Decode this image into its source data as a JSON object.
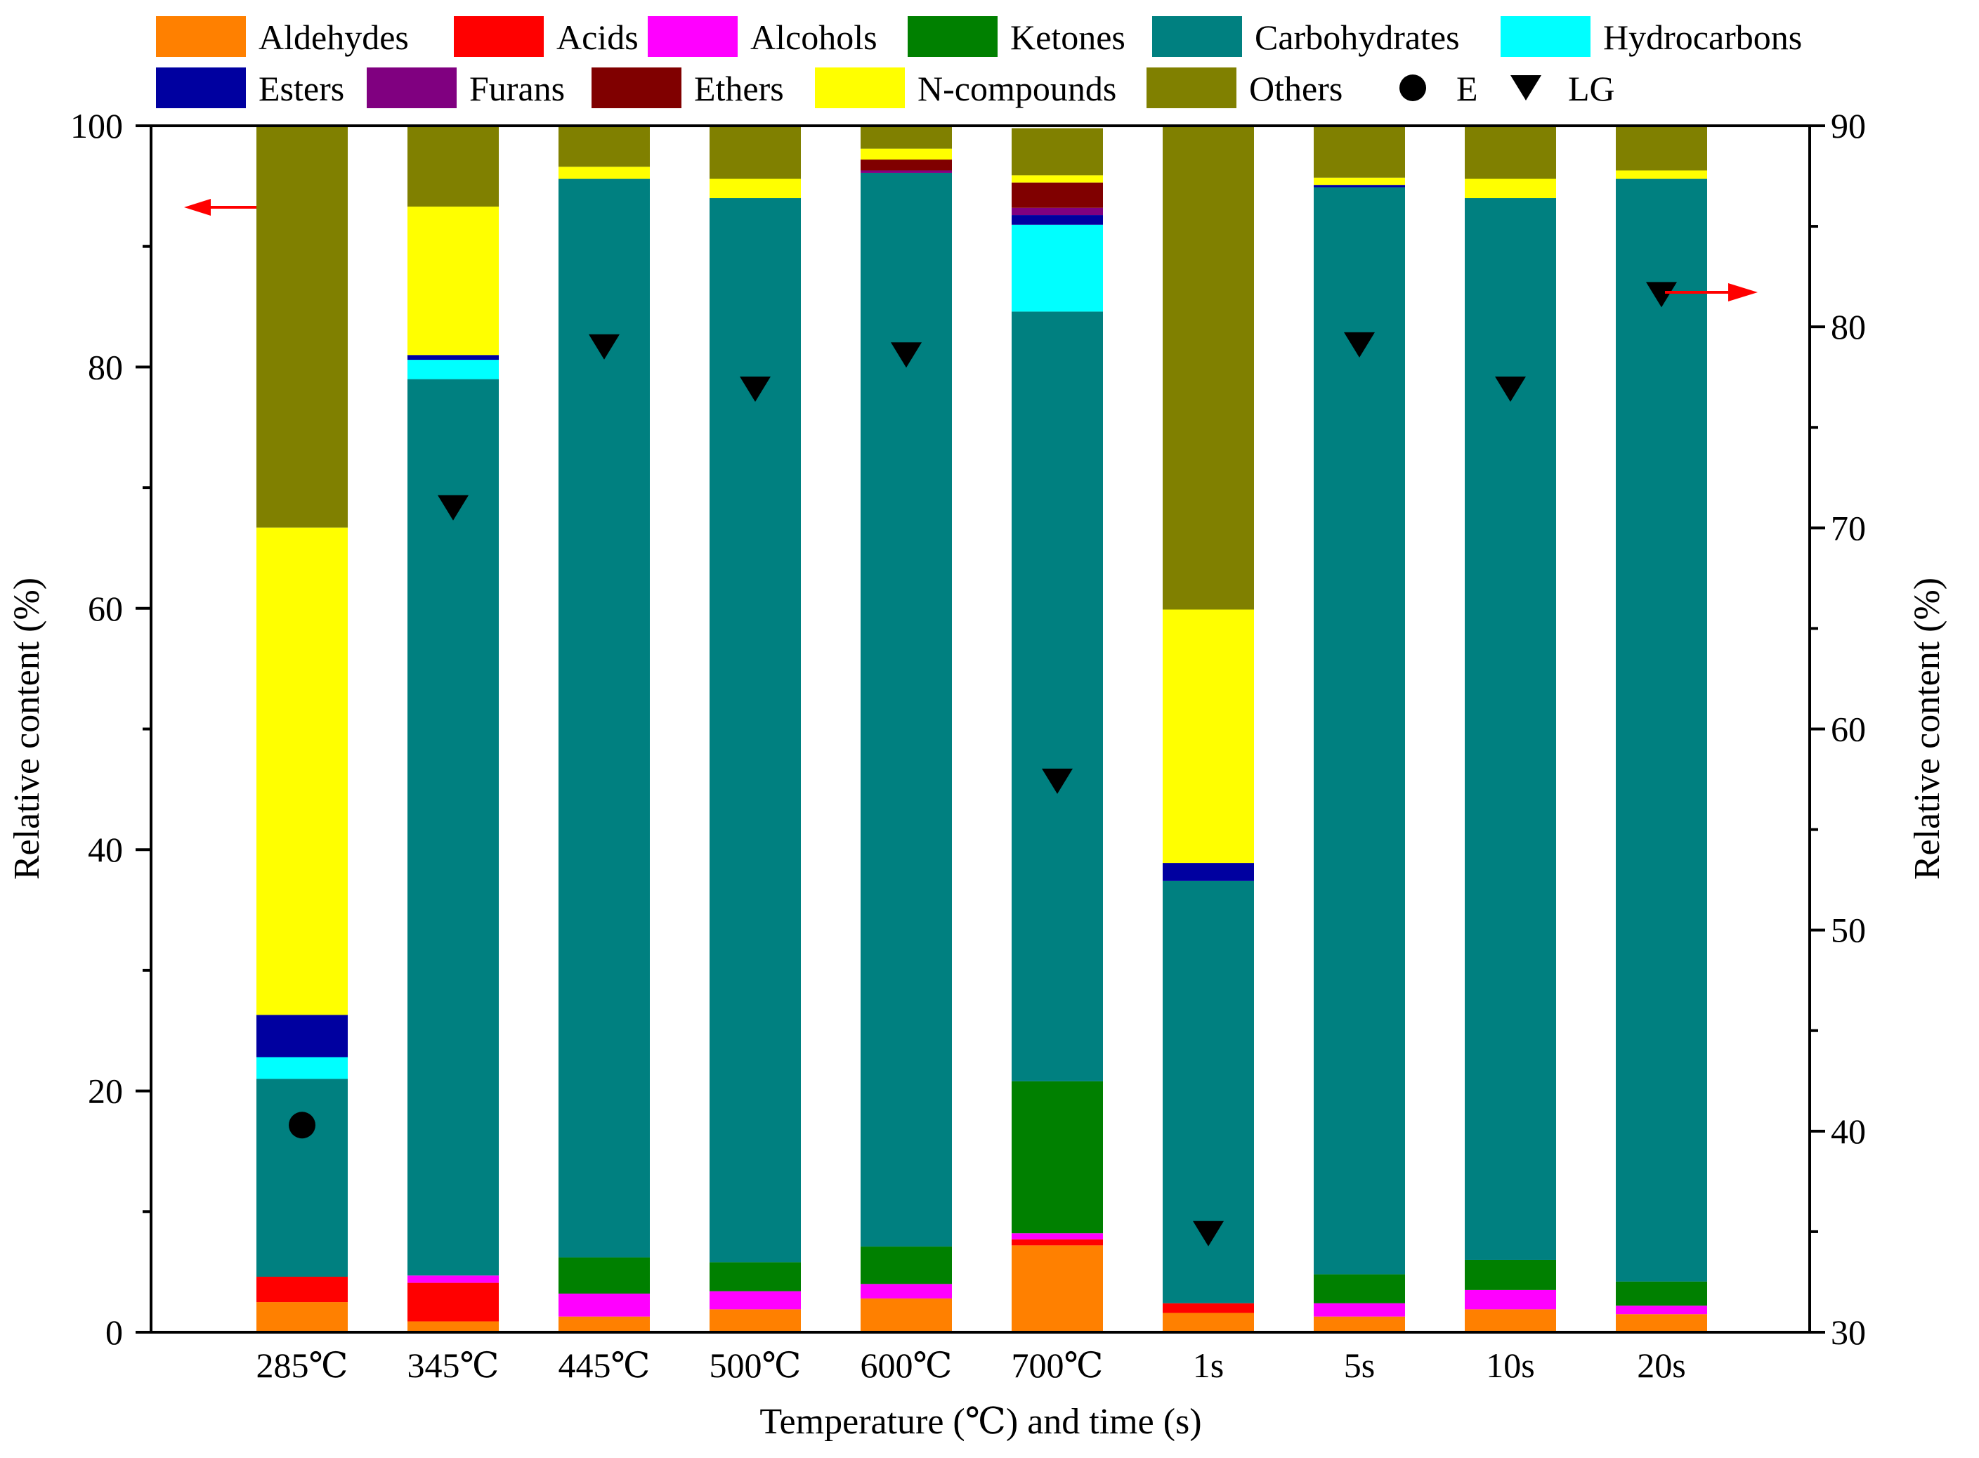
{
  "chart_data": {
    "type": "stacked-bar",
    "categories": [
      "285℃",
      "345℃",
      "445℃",
      "500℃",
      "600℃",
      "700℃",
      "1s",
      "5s",
      "10s",
      "20s"
    ],
    "xlabel": "Temperature (℃) and time (s)",
    "ylabel_left": "Relative content (%)",
    "ylabel_right": "Relative content (%)",
    "ylim_left": [
      0,
      100
    ],
    "ylim_right": [
      30,
      90
    ],
    "yticks_left": [
      "0",
      "20",
      "40",
      "60",
      "80",
      "100"
    ],
    "yticks_right": [
      "30",
      "40",
      "50",
      "60",
      "70",
      "80",
      "90"
    ],
    "series": [
      {
        "name": "Aldehydes",
        "color": "#FF8000",
        "values": [
          2.5,
          0.9,
          1.3,
          1.9,
          2.8,
          7.2,
          1.6,
          1.3,
          1.9,
          1.5
        ]
      },
      {
        "name": "Acids",
        "color": "#FF0000",
        "values": [
          2.1,
          3.2,
          0.0,
          0.0,
          0.0,
          0.5,
          0.8,
          0.0,
          0.0,
          0.0
        ]
      },
      {
        "name": "Alcohols",
        "color": "#FF00FF",
        "values": [
          0.0,
          0.6,
          1.9,
          1.5,
          1.2,
          0.5,
          0.0,
          1.1,
          1.6,
          0.7
        ]
      },
      {
        "name": "Ketones",
        "color": "#008000",
        "values": [
          0.0,
          0.0,
          3.0,
          2.4,
          3.1,
          12.6,
          0.0,
          2.4,
          2.5,
          2.0
        ]
      },
      {
        "name": "Carbohydrates",
        "color": "#008080",
        "values": [
          16.4,
          74.3,
          89.4,
          88.2,
          89.0,
          63.8,
          35.0,
          90.1,
          88.0,
          91.4
        ]
      },
      {
        "name": "Hydrocarbons",
        "color": "#00FFFF",
        "values": [
          1.8,
          1.6,
          0.0,
          0.0,
          0.0,
          7.2,
          0.0,
          0.0,
          0.0,
          0.0
        ]
      },
      {
        "name": "Esters",
        "color": "#0000A0",
        "values": [
          3.5,
          0.4,
          0.0,
          0.0,
          0.0,
          0.8,
          1.5,
          0.2,
          0.0,
          0.0
        ]
      },
      {
        "name": "Furans",
        "color": "#800080",
        "values": [
          0.0,
          0.0,
          0.0,
          0.0,
          0.2,
          0.6,
          0.0,
          0.0,
          0.0,
          0.0
        ]
      },
      {
        "name": "Ethers",
        "color": "#800000",
        "values": [
          0.0,
          0.0,
          0.0,
          0.0,
          0.9,
          2.1,
          0.0,
          0.0,
          0.0,
          0.0
        ]
      },
      {
        "name": "N-compounds",
        "color": "#FFFF00",
        "values": [
          40.4,
          12.3,
          1.0,
          1.6,
          0.9,
          0.6,
          21.0,
          0.6,
          1.6,
          0.7
        ]
      },
      {
        "name": "Others",
        "color": "#808000",
        "values": [
          33.3,
          6.7,
          3.4,
          4.4,
          1.9,
          3.9,
          40.1,
          4.3,
          4.4,
          3.7
        ]
      }
    ],
    "markers": [
      {
        "name": "E",
        "shape": "circle",
        "axis": "right",
        "points": [
          {
            "category": "285℃",
            "value": 40.3
          }
        ]
      },
      {
        "name": "LG",
        "shape": "triangle-down",
        "axis": "right",
        "points": [
          {
            "category": "345℃",
            "value": 71.0
          },
          {
            "category": "445℃",
            "value": 79.0
          },
          {
            "category": "500℃",
            "value": 76.9
          },
          {
            "category": "600℃",
            "value": 78.6
          },
          {
            "category": "700℃",
            "value": 57.4
          },
          {
            "category": "1s",
            "value": 34.9
          },
          {
            "category": "5s",
            "value": 79.1
          },
          {
            "category": "10s",
            "value": 76.9
          },
          {
            "category": "20s",
            "value": 81.6
          }
        ]
      }
    ],
    "arrows": [
      {
        "target_axis": "left",
        "direction": "left"
      },
      {
        "target_axis": "right",
        "direction": "right"
      }
    ],
    "legend_placement": "top"
  }
}
